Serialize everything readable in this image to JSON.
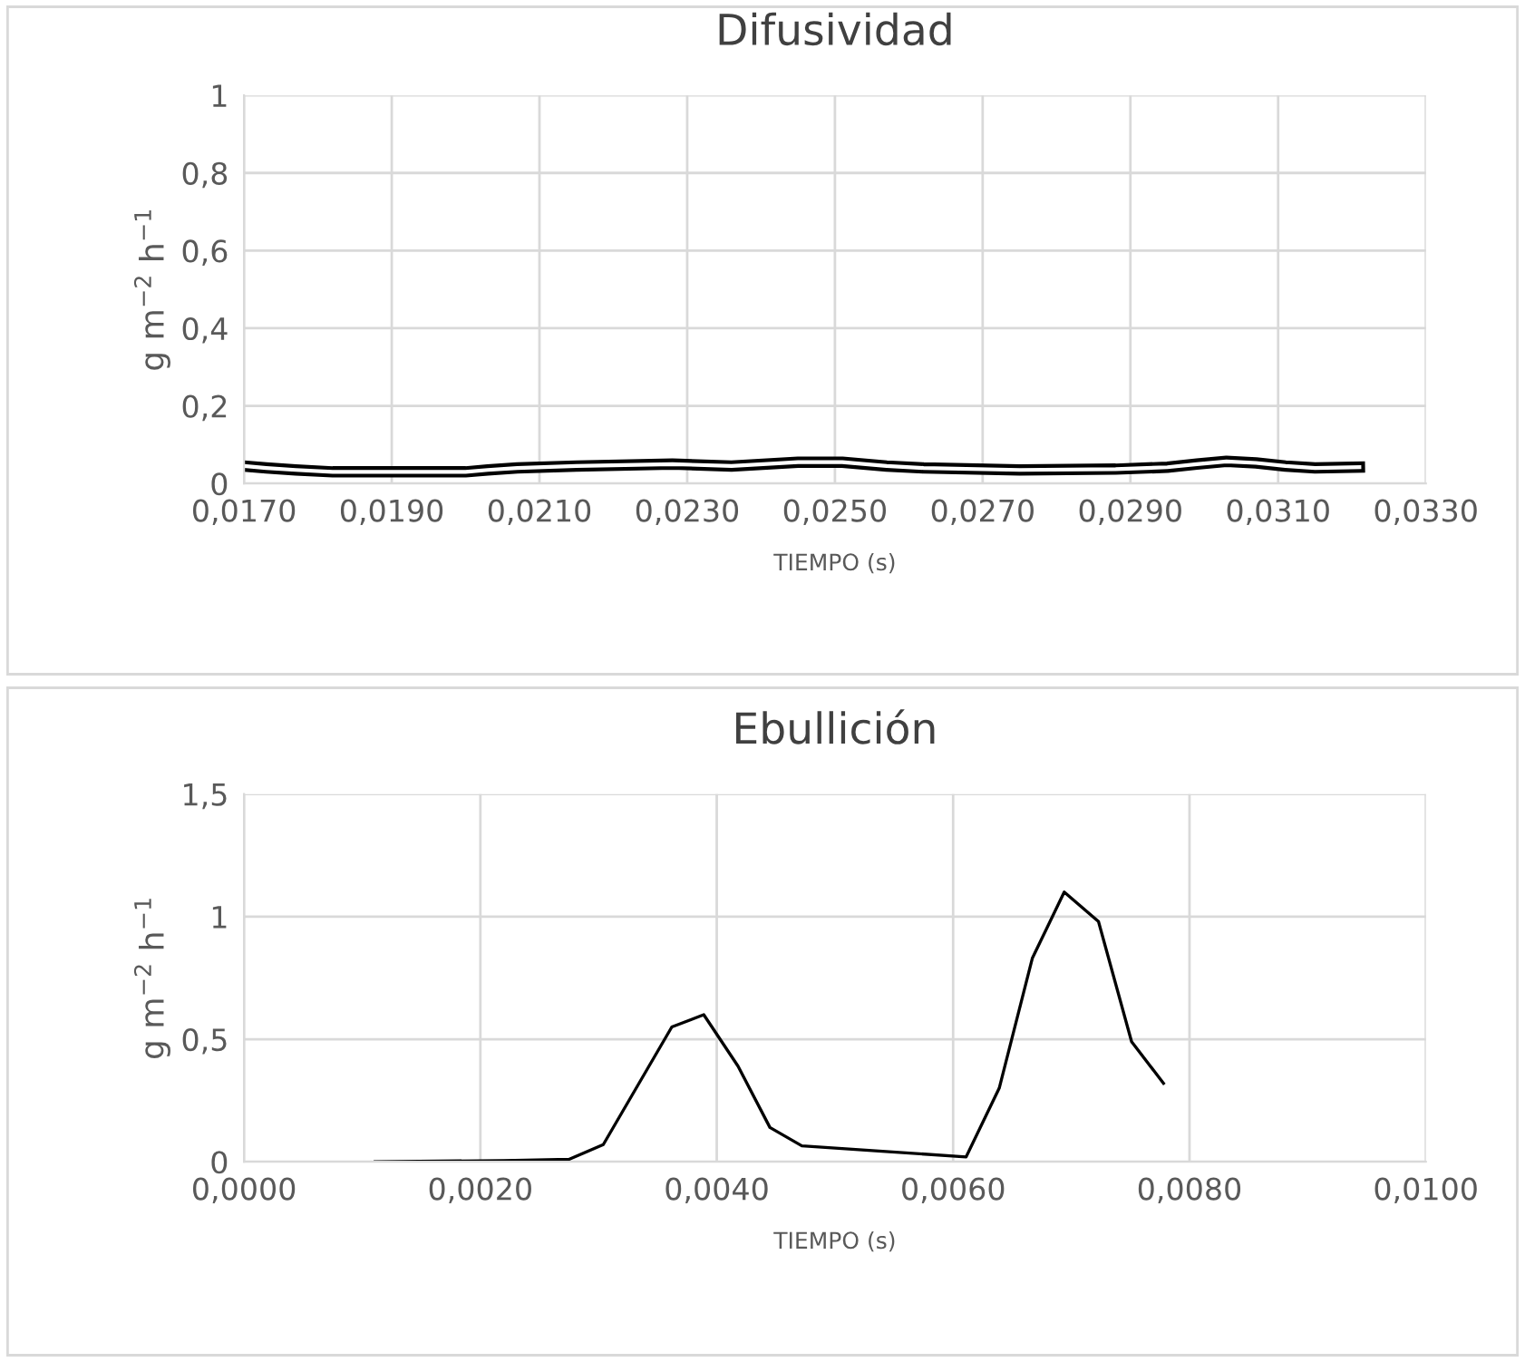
{
  "chart_data": [
    {
      "type": "line",
      "title": "Difusividad",
      "xlabel": "TIEMPO (s)",
      "ylabel": "g m$^{−2}$ h$^{−1}$",
      "grid": true,
      "legend": false,
      "xlim": [
        0.017,
        0.033
      ],
      "xticks": [
        {
          "value": 0.017,
          "label": "0,0170"
        },
        {
          "value": 0.019,
          "label": "0,0190"
        },
        {
          "value": 0.021,
          "label": "0,0210"
        },
        {
          "value": 0.023,
          "label": "0,0230"
        },
        {
          "value": 0.025,
          "label": "0,0250"
        },
        {
          "value": 0.027,
          "label": "0,0270"
        },
        {
          "value": 0.029,
          "label": "0,0290"
        },
        {
          "value": 0.031,
          "label": "0,0310"
        },
        {
          "value": 0.033,
          "label": "0,0330"
        }
      ],
      "ylim": [
        0,
        1
      ],
      "yticks": [
        0,
        {
          "value": 0.2,
          "label": "0,2"
        },
        {
          "value": 0.4,
          "label": "0,4"
        },
        {
          "value": 0.6,
          "label": "0,6"
        },
        {
          "value": 0.8,
          "label": "0,8"
        },
        1
      ],
      "series": [
        {
          "color": "#000000",
          "x": [
            0.017,
            0.0173,
            0.0177,
            0.0182,
            0.019,
            0.02,
            0.0203,
            0.0207,
            0.0215,
            0.0228,
            0.0236,
            0.0245,
            0.0251,
            0.0257,
            0.0262,
            0.0275,
            0.0288,
            0.0295,
            0.0299,
            0.0303,
            0.0307,
            0.0311,
            0.0315,
            0.0321
          ],
          "values": [
            0.045,
            0.04,
            0.035,
            0.03,
            0.03,
            0.03,
            0.035,
            0.04,
            0.045,
            0.05,
            0.045,
            0.055,
            0.055,
            0.045,
            0.04,
            0.035,
            0.037,
            0.042,
            0.05,
            0.057,
            0.053,
            0.045,
            0.04,
            0.042
          ]
        }
      ]
    },
    {
      "type": "line",
      "title": "Ebullición",
      "xlabel": "TIEMPO (s)",
      "ylabel": "g m$^{−2}$ h$^{−1}$",
      "grid": true,
      "legend": false,
      "xlim": [
        0,
        0.01
      ],
      "xticks": [
        {
          "value": 0,
          "label": "0,0000"
        },
        {
          "value": 0.002,
          "label": "0,0020"
        },
        {
          "value": 0.004,
          "label": "0,0040"
        },
        {
          "value": 0.006,
          "label": "0,0060"
        },
        {
          "value": 0.008,
          "label": "0,0080"
        },
        {
          "value": 0.01,
          "label": "0,0100"
        }
      ],
      "ylim": [
        0,
        1.5
      ],
      "yticks": [
        0,
        {
          "value": 0.5,
          "label": "0,5"
        },
        1,
        {
          "value": 1.5,
          "label": "1,5"
        }
      ],
      "series": [
        {
          "color": "#000000",
          "x": [
            0.00111,
            0.0022,
            0.00275,
            0.00304,
            0.00362,
            0.00389,
            0.00418,
            0.00445,
            0.00472,
            0.00611,
            0.00639,
            0.00667,
            0.00694,
            0.00723,
            0.00751,
            0.00778
          ],
          "values": [
            0,
            0.005,
            0.01,
            0.07,
            0.55,
            0.6,
            0.39,
            0.14,
            0.065,
            0.02,
            0.3,
            0.83,
            1.1,
            0.98,
            0.49,
            0.32
          ]
        }
      ]
    }
  ]
}
